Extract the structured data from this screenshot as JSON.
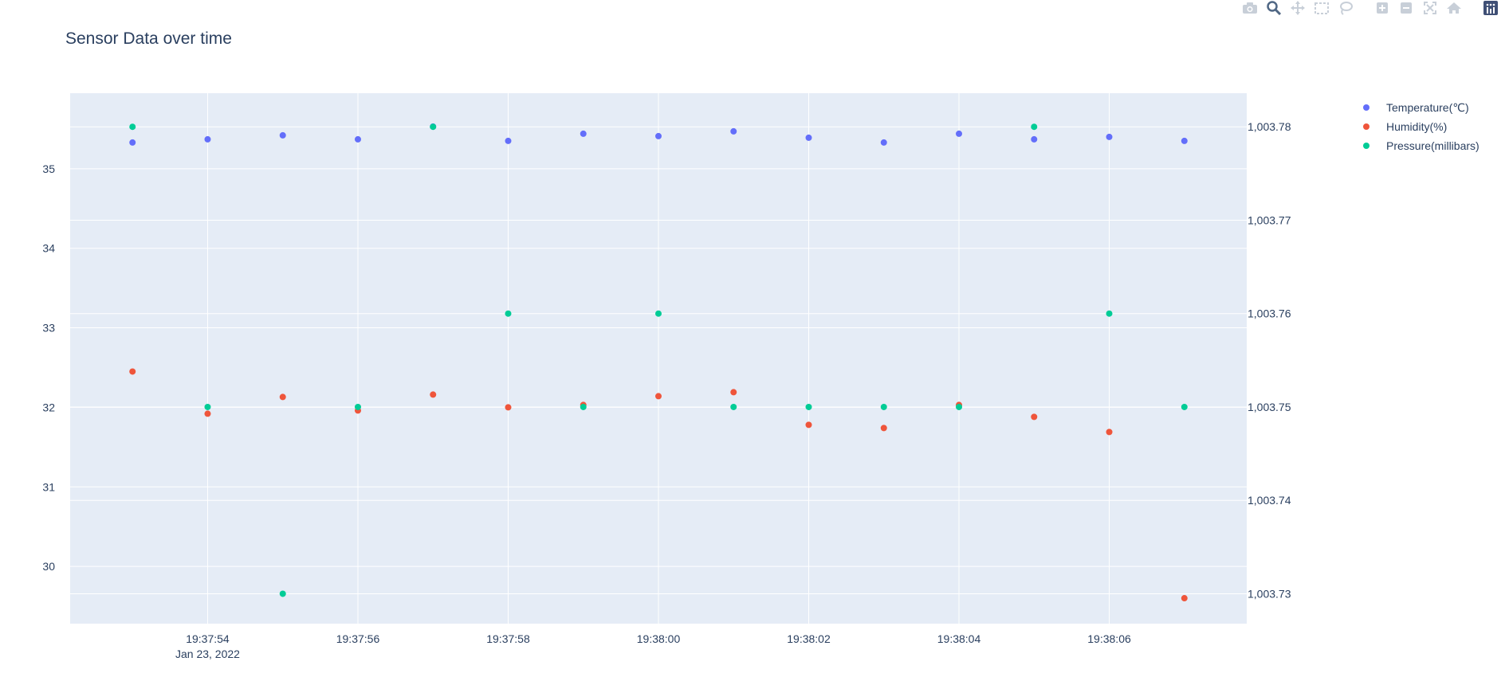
{
  "modebar": {
    "buttons": [
      "camera-icon",
      "zoom-icon",
      "pan-icon",
      "box-select-icon",
      "lasso-select-icon",
      "zoom-in-icon",
      "zoom-out-icon",
      "autoscale-icon",
      "home-icon",
      "plotly-logo-icon"
    ]
  },
  "chart_data": {
    "type": "scatter",
    "title": "Sensor Data over time",
    "x": [
      "19:37:53",
      "19:37:54",
      "19:37:55",
      "19:37:56",
      "19:37:57",
      "19:37:58",
      "19:37:59",
      "19:38:00",
      "19:38:01",
      "19:38:02",
      "19:38:03",
      "19:38:04",
      "19:38:05",
      "19:38:06",
      "19:38:07"
    ],
    "x_tick_labels": [
      "19:37:54",
      "19:37:56",
      "19:37:58",
      "19:38:00",
      "19:38:02",
      "19:38:04",
      "19:38:06"
    ],
    "x_tick_date": "Jan 23, 2022",
    "y_left_ticks": [
      "30",
      "31",
      "32",
      "33",
      "34",
      "35"
    ],
    "y_right_ticks": [
      "1,003.73",
      "1,003.74",
      "1,003.75",
      "1,003.76",
      "1,003.77",
      "1,003.78"
    ],
    "y_left_range": [
      29.28,
      35.95
    ],
    "y_right_range": [
      1003.7268,
      1003.7836
    ],
    "legend_position": "top-right",
    "grid": true,
    "colors": {
      "plot_bg": "#e5ecf6",
      "grid": "#ffffff"
    },
    "series": [
      {
        "name": "Temperature(℃)",
        "axis": "left",
        "color": "#636efa",
        "values": [
          35.33,
          35.37,
          35.42,
          35.37,
          35.53,
          35.35,
          35.44,
          35.41,
          35.47,
          35.39,
          35.33,
          35.44,
          35.37,
          35.4,
          35.35
        ]
      },
      {
        "name": "Humidity(%)",
        "axis": "left",
        "color": "#ef553b",
        "values": [
          32.45,
          31.92,
          32.13,
          31.96,
          32.16,
          32.0,
          32.03,
          32.14,
          32.19,
          31.78,
          31.74,
          32.03,
          31.88,
          31.69,
          29.6
        ]
      },
      {
        "name": "Pressure(millibars)",
        "axis": "right",
        "color": "#00cc96",
        "values": [
          1003.78,
          1003.75,
          1003.73,
          1003.75,
          1003.78,
          1003.76,
          1003.75,
          1003.76,
          1003.75,
          1003.75,
          1003.75,
          1003.75,
          1003.78,
          1003.76,
          1003.75
        ]
      }
    ]
  }
}
